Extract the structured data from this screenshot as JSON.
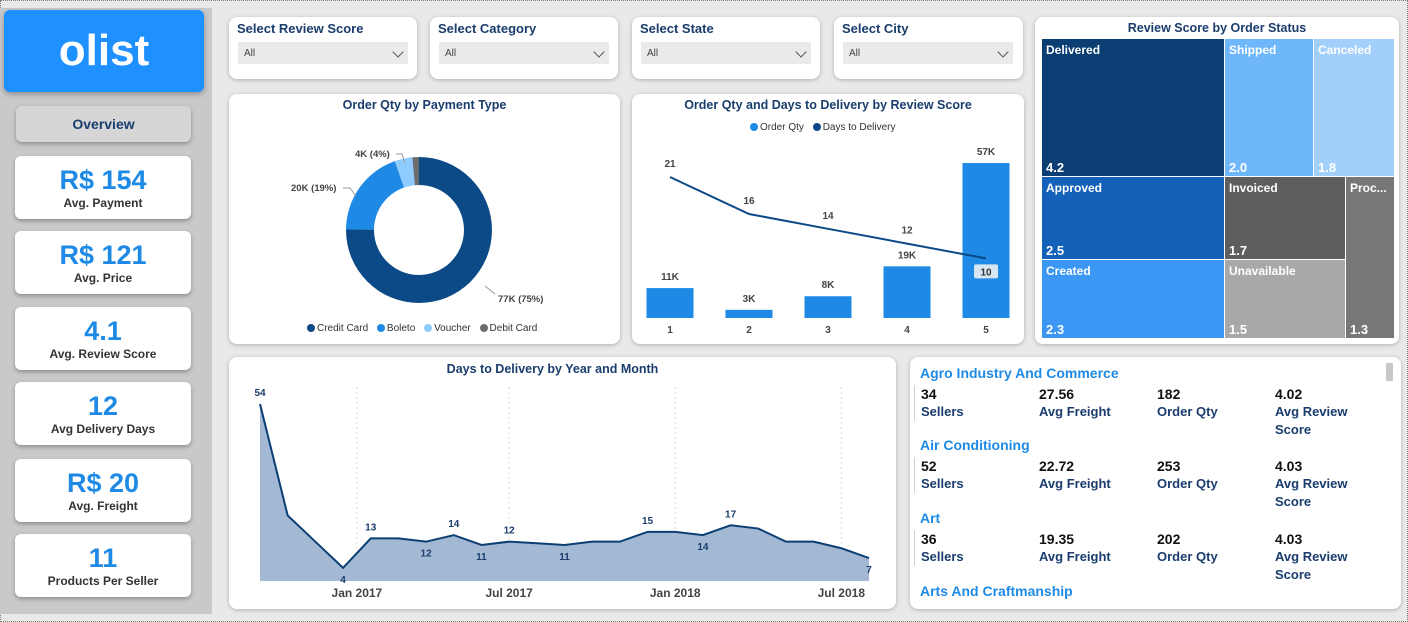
{
  "brand": {
    "logo": "olist",
    "accent": "#1E90FF"
  },
  "nav": {
    "overview_label": "Overview"
  },
  "kpis": [
    {
      "value": "R$ 154",
      "label": "Avg. Payment"
    },
    {
      "value": "R$ 121",
      "label": "Avg. Price"
    },
    {
      "value": "4.1",
      "label": "Avg. Review Score"
    },
    {
      "value": "12",
      "label": "Avg Delivery Days"
    },
    {
      "value": "R$ 20",
      "label": "Avg. Freight"
    },
    {
      "value": "11",
      "label": "Products Per Seller"
    }
  ],
  "slicers": [
    {
      "title": "Select Review Score",
      "value": "All"
    },
    {
      "title": "Select Category",
      "value": "All"
    },
    {
      "title": "Select State",
      "value": "All"
    },
    {
      "title": "Select City",
      "value": "All"
    }
  ],
  "donut": {
    "title": "Order Qty by Payment Type",
    "legend": [
      "Credit Card",
      "Boleto",
      "Voucher",
      "Debit Card"
    ],
    "labels": {
      "credit": "77K (75%)",
      "boleto": "20K (19%)",
      "voucher": "4K (4%)"
    }
  },
  "combo": {
    "title": "Order Qty and Days to Delivery by Review Score",
    "legend": [
      "Order Qty",
      "Days to Delivery"
    ]
  },
  "treemap": {
    "title": "Review Score by Order Status",
    "cells": [
      {
        "name": "Delivered",
        "value": "4.2",
        "color": "#0b3e73"
      },
      {
        "name": "Shipped",
        "value": "2.0",
        "color": "#6fb7fb"
      },
      {
        "name": "Canceled",
        "value": "1.8",
        "color": "#a3cffc"
      },
      {
        "name": "Approved",
        "value": "2.5",
        "color": "#1361b8"
      },
      {
        "name": "Invoiced",
        "value": "1.7",
        "color": "#5e5e5e"
      },
      {
        "name": "Proc...",
        "value": "1.3",
        "color": "#777777"
      },
      {
        "name": "Created",
        "value": "2.3",
        "color": "#3c97f4"
      },
      {
        "name": "Unavailable",
        "value": "1.5",
        "color": "#a8a8a8"
      }
    ]
  },
  "area": {
    "title": "Days to Delivery by Year and Month",
    "xticks": [
      "Jan 2017",
      "Jul 2017",
      "Jan 2018",
      "Jul 2018"
    ]
  },
  "categories": {
    "labels": [
      "Sellers",
      "Avg Freight",
      "Order Qty",
      "Avg Review Score"
    ],
    "items": [
      {
        "name": "Agro Industry And Commerce",
        "sellers": "34",
        "freight": "27.56",
        "qty": "182",
        "review": "4.02"
      },
      {
        "name": "Air Conditioning",
        "sellers": "52",
        "freight": "22.72",
        "qty": "253",
        "review": "4.03"
      },
      {
        "name": "Art",
        "sellers": "36",
        "freight": "19.35",
        "qty": "202",
        "review": "4.03"
      },
      {
        "name": "Arts And Craftmanship"
      }
    ]
  },
  "chart_data": [
    {
      "type": "pie",
      "title": "Order Qty by Payment Type",
      "categories": [
        "Credit Card",
        "Boleto",
        "Voucher",
        "Debit Card"
      ],
      "values": [
        77,
        20,
        4,
        1.5
      ],
      "data_labels": [
        "77K (75%)",
        "20K (19%)",
        "4K (4%)",
        ""
      ],
      "colors": [
        "#0b4a87",
        "#1e8ae6",
        "#8ecbff",
        "#6d6d6d"
      ],
      "legend": "bottom"
    },
    {
      "type": "bar",
      "title": "Order Qty and Days to Delivery by Review Score",
      "categories": [
        "1",
        "2",
        "3",
        "4",
        "5"
      ],
      "series": [
        {
          "name": "Order Qty",
          "type": "bar",
          "values": [
            11,
            3,
            8,
            19,
            57
          ],
          "labels": [
            "11K",
            "3K",
            "8K",
            "19K",
            "57K"
          ],
          "color": "#1e8ae6"
        },
        {
          "name": "Days to Delivery",
          "type": "line",
          "values": [
            21,
            16,
            14,
            12,
            10
          ],
          "labels": [
            "21",
            "16",
            "14",
            "12",
            "10"
          ],
          "color": "#0b4a87"
        }
      ],
      "legend": "top"
    },
    {
      "type": "area",
      "title": "Days to Delivery by Year and Month",
      "x": [
        "2016-10",
        "2016-11",
        "2016-12",
        "2017-01",
        "2017-02",
        "2017-03",
        "2017-04",
        "2017-05",
        "2017-06",
        "2017-07",
        "2017-08",
        "2017-09",
        "2017-10",
        "2017-11",
        "2017-12",
        "2018-01",
        "2018-02",
        "2018-03",
        "2018-04",
        "2018-05",
        "2018-06",
        "2018-07",
        "2018-08"
      ],
      "values": [
        54,
        20,
        12,
        4,
        13,
        13,
        12,
        14,
        11,
        12,
        11.5,
        11,
        12,
        12,
        15,
        15,
        14,
        17,
        16,
        12,
        12,
        10,
        7
      ],
      "point_labels": [
        54,
        null,
        null,
        4,
        13,
        null,
        12,
        14,
        11,
        12,
        null,
        11,
        null,
        null,
        15,
        null,
        14,
        17,
        null,
        null,
        null,
        null,
        7
      ],
      "xticks": [
        "Jan 2017",
        "Jul 2017",
        "Jan 2018",
        "Jul 2018"
      ],
      "color": "#a3b9d3",
      "line_color": "#0b3e73"
    },
    {
      "type": "treemap",
      "title": "Review Score by Order Status",
      "categories": [
        "Delivered",
        "Shipped",
        "Canceled",
        "Approved",
        "Invoiced",
        "Proc...",
        "Created",
        "Unavailable"
      ],
      "values": [
        4.2,
        2.0,
        1.8,
        2.5,
        1.7,
        1.3,
        2.3,
        1.5
      ]
    }
  ]
}
